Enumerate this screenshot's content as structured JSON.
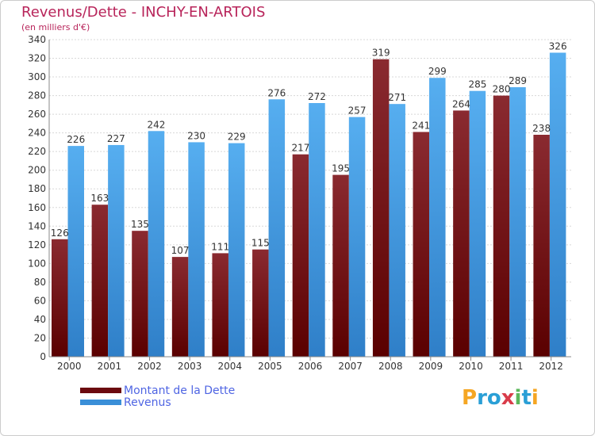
{
  "title": "Revenus/Dette - INCHY-EN-ARTOIS",
  "subtitle": "(en milliers d'€)",
  "logo": {
    "text": "Proxiti",
    "letters": [
      "P",
      "r",
      "o",
      "x",
      "i",
      "t",
      "i"
    ],
    "colors": [
      "#f5a623",
      "#2a9fd6",
      "#2a9fd6",
      "#d93c4a",
      "#5cb85c",
      "#2a9fd6",
      "#f5a623"
    ]
  },
  "chart_data": {
    "type": "bar",
    "categories": [
      "2000",
      "2001",
      "2002",
      "2003",
      "2004",
      "2005",
      "2006",
      "2007",
      "2008",
      "2009",
      "2010",
      "2011",
      "2012"
    ],
    "series": [
      {
        "name": "Montant de la Dette",
        "color": "#7a1a1f",
        "values": [
          126,
          163,
          135,
          107,
          111,
          115,
          217,
          195,
          319,
          241,
          264,
          280,
          238
        ]
      },
      {
        "name": "Revenus",
        "color": "#3a8fd8",
        "values": [
          226,
          227,
          242,
          230,
          229,
          276,
          272,
          257,
          271,
          299,
          285,
          289,
          326
        ]
      }
    ],
    "ylim": [
      0,
      340
    ],
    "yticks": [
      0,
      20,
      40,
      60,
      80,
      100,
      120,
      140,
      160,
      180,
      200,
      220,
      240,
      260,
      280,
      300,
      320,
      340
    ],
    "grid": true,
    "legend_position": "bottom-left"
  }
}
